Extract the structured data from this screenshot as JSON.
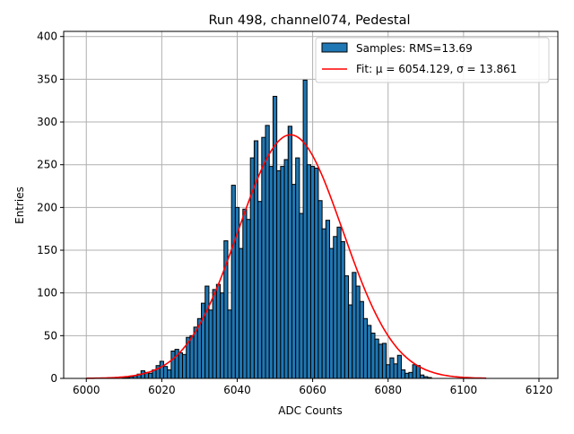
{
  "chart_data": {
    "type": "bar",
    "title": "Run 498, channel074, Pedestal",
    "xlabel": "ADC Counts",
    "ylabel": "Entries",
    "xlim": [
      5994,
      6125
    ],
    "ylim": [
      0,
      406
    ],
    "xticks": [
      6000,
      6020,
      6040,
      6060,
      6080,
      6100,
      6120
    ],
    "yticks": [
      0,
      50,
      100,
      150,
      200,
      250,
      300,
      350,
      400
    ],
    "grid": true,
    "legend_position": "top-right",
    "bin_width": 1,
    "bin_start": 6010,
    "values": [
      1,
      1,
      2,
      3,
      5,
      9,
      7,
      6,
      10,
      15,
      20,
      14,
      10,
      32,
      34,
      30,
      28,
      48,
      50,
      60,
      70,
      88,
      108,
      80,
      104,
      110,
      100,
      161,
      80,
      226,
      200,
      152,
      198,
      186,
      258,
      278,
      207,
      282,
      296,
      248,
      330,
      243,
      248,
      256,
      295,
      227,
      258,
      193,
      349,
      250,
      248,
      246,
      208,
      175,
      185,
      152,
      166,
      177,
      160,
      120,
      86,
      124,
      108,
      90,
      70,
      62,
      53,
      46,
      40,
      41,
      16,
      24,
      17,
      27,
      10,
      6,
      7,
      16,
      15,
      4,
      2,
      1
    ],
    "series": [
      {
        "name": "Samples: RMS=13.69",
        "kind": "histogram",
        "color": "#1f77b4",
        "edge": "#000000"
      },
      {
        "name": "Fit: μ = 6054.129, σ = 13.861",
        "kind": "line",
        "color": "#ff0000",
        "mu": 6054.129,
        "sigma": 13.861,
        "amplitude": 285,
        "x_range": [
          6000,
          6106
        ]
      }
    ]
  }
}
